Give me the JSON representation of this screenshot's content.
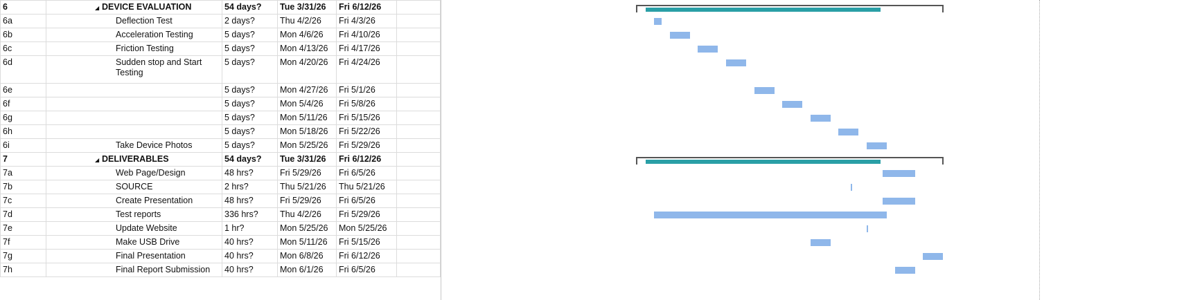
{
  "rows": [
    {
      "id": "6",
      "name": "DEVICE EVALUATION",
      "duration": "54 days?",
      "start": "Tue 3/31/26",
      "finish": "Fri 6/12/26",
      "summary": true
    },
    {
      "id": "6a",
      "name": "Deflection Test",
      "duration": "2 days?",
      "start": "Thu 4/2/26",
      "finish": "Fri 4/3/26"
    },
    {
      "id": "6b",
      "name": "Acceleration Testing",
      "duration": "5 days?",
      "start": "Mon 4/6/26",
      "finish": "Fri 4/10/26"
    },
    {
      "id": "6c",
      "name": "Friction Testing",
      "duration": "5 days?",
      "start": "Mon 4/13/26",
      "finish": "Fri 4/17/26"
    },
    {
      "id": "6d",
      "name": "Sudden stop and Start Testing",
      "duration": "5 days?",
      "start": "Mon 4/20/26",
      "finish": "Fri 4/24/26",
      "tall": true
    },
    {
      "id": "6e",
      "name": "",
      "duration": "5 days?",
      "start": "Mon 4/27/26",
      "finish": "Fri 5/1/26"
    },
    {
      "id": "6f",
      "name": "",
      "duration": "5 days?",
      "start": "Mon 5/4/26",
      "finish": "Fri 5/8/26"
    },
    {
      "id": "6g",
      "name": "",
      "duration": "5 days?",
      "start": "Mon 5/11/26",
      "finish": "Fri 5/15/26"
    },
    {
      "id": "6h",
      "name": "",
      "duration": "5 days?",
      "start": "Mon 5/18/26",
      "finish": "Fri 5/22/26"
    },
    {
      "id": "6i",
      "name": "Take Device Photos",
      "duration": "5 days?",
      "start": "Mon 5/25/26",
      "finish": "Fri 5/29/26"
    },
    {
      "id": "7",
      "name": "DELIVERABLES",
      "duration": "54 days?",
      "start": "Tue 3/31/26",
      "finish": "Fri 6/12/26",
      "summary": true
    },
    {
      "id": "7a",
      "name": "Web Page/Design",
      "duration": "48 hrs?",
      "start": "Fri 5/29/26",
      "finish": "Fri 6/5/26"
    },
    {
      "id": "7b",
      "name": "SOURCE",
      "duration": "2 hrs?",
      "start": "Thu 5/21/26",
      "finish": "Thu 5/21/26"
    },
    {
      "id": "7c",
      "name": "Create Presentation",
      "duration": "48 hrs?",
      "start": "Fri 5/29/26",
      "finish": "Fri 6/5/26"
    },
    {
      "id": "7d",
      "name": "Test reports",
      "duration": "336 hrs?",
      "start": "Thu 4/2/26",
      "finish": "Fri 5/29/26"
    },
    {
      "id": "7e",
      "name": "Update Website",
      "duration": "1 hr?",
      "start": "Mon 5/25/26",
      "finish": "Mon 5/25/26"
    },
    {
      "id": "7f",
      "name": "Make USB Drive",
      "duration": "40 hrs?",
      "start": "Mon 5/11/26",
      "finish": "Fri 5/15/26"
    },
    {
      "id": "7g",
      "name": "Final Presentation",
      "duration": "40 hrs?",
      "start": "Mon 6/8/26",
      "finish": "Fri 6/12/26"
    },
    {
      "id": "7h",
      "name": "Final Report Submission",
      "duration": "40 hrs?",
      "start": "Mon 6/1/26",
      "finish": "Fri 6/5/26"
    }
  ],
  "colors": {
    "task_bar": "#8fb7ea",
    "summary_bar": "#2a9fa6"
  }
}
